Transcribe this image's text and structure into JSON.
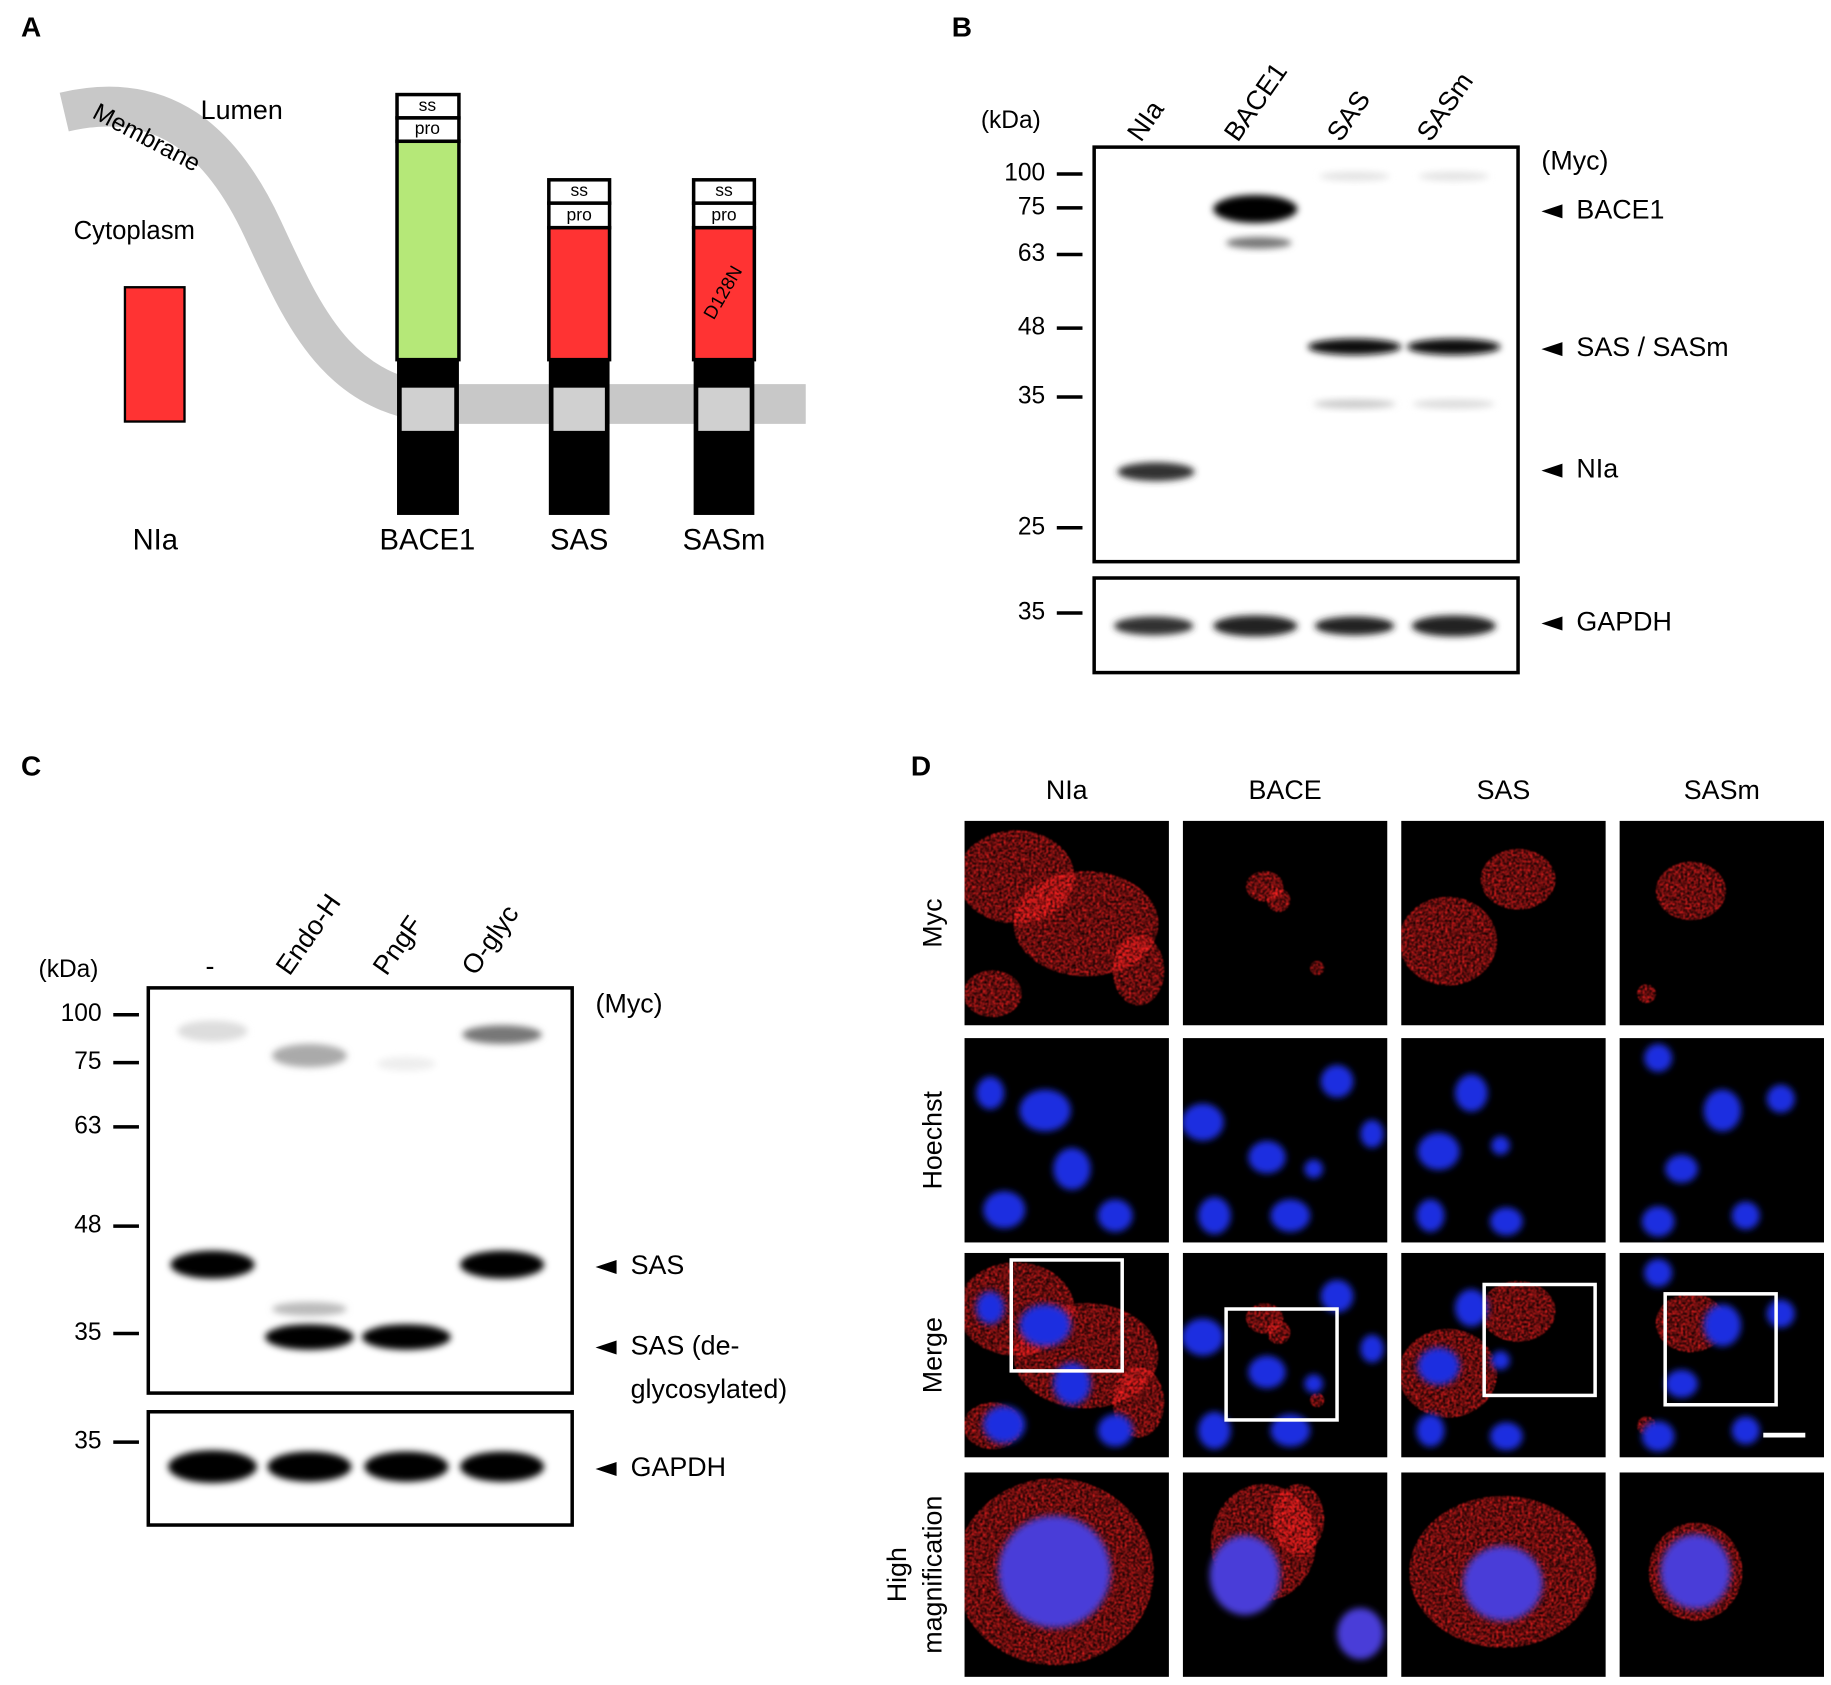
{
  "panels": {
    "a": {
      "label": "A",
      "lumen": "Lumen",
      "membrane": "Membrane",
      "cytoplasm": "Cytoplasm",
      "constructs": [
        {
          "name": "NIa"
        },
        {
          "name": "BACE1",
          "ss": "ss",
          "pro": "pro"
        },
        {
          "name": "SAS",
          "ss": "ss",
          "pro": "pro"
        },
        {
          "name": "SASm",
          "ss": "ss",
          "pro": "pro",
          "mutation": "D128N"
        }
      ]
    },
    "b": {
      "label": "B",
      "unit": "(kDa)",
      "lanes": [
        "NIa",
        "BACE1",
        "SAS",
        "SASm"
      ],
      "markers": [
        100,
        75,
        63,
        48,
        35,
        25
      ],
      "gapdh_marker": 35,
      "antibody": "(Myc)",
      "bands": [
        "BACE1",
        "SAS / SASm",
        "NIa"
      ],
      "loading": "GAPDH"
    },
    "c": {
      "label": "C",
      "unit": "(kDa)",
      "lanes": [
        "-",
        "Endo-H",
        "PngF",
        "O-glyc"
      ],
      "markers": [
        100,
        75,
        63,
        48,
        35
      ],
      "gapdh_marker": 35,
      "antibody": "(Myc)",
      "bands": [
        "SAS",
        "SAS (de-",
        "glycosylated)"
      ],
      "loading": "GAPDH"
    },
    "d": {
      "label": "D",
      "columns": [
        "NIa",
        "BACE",
        "SAS",
        "SASm"
      ],
      "rows": [
        [
          "Myc"
        ],
        [
          "Hoechst"
        ],
        [
          "Merge"
        ],
        [
          "High",
          "magnification"
        ]
      ]
    }
  }
}
